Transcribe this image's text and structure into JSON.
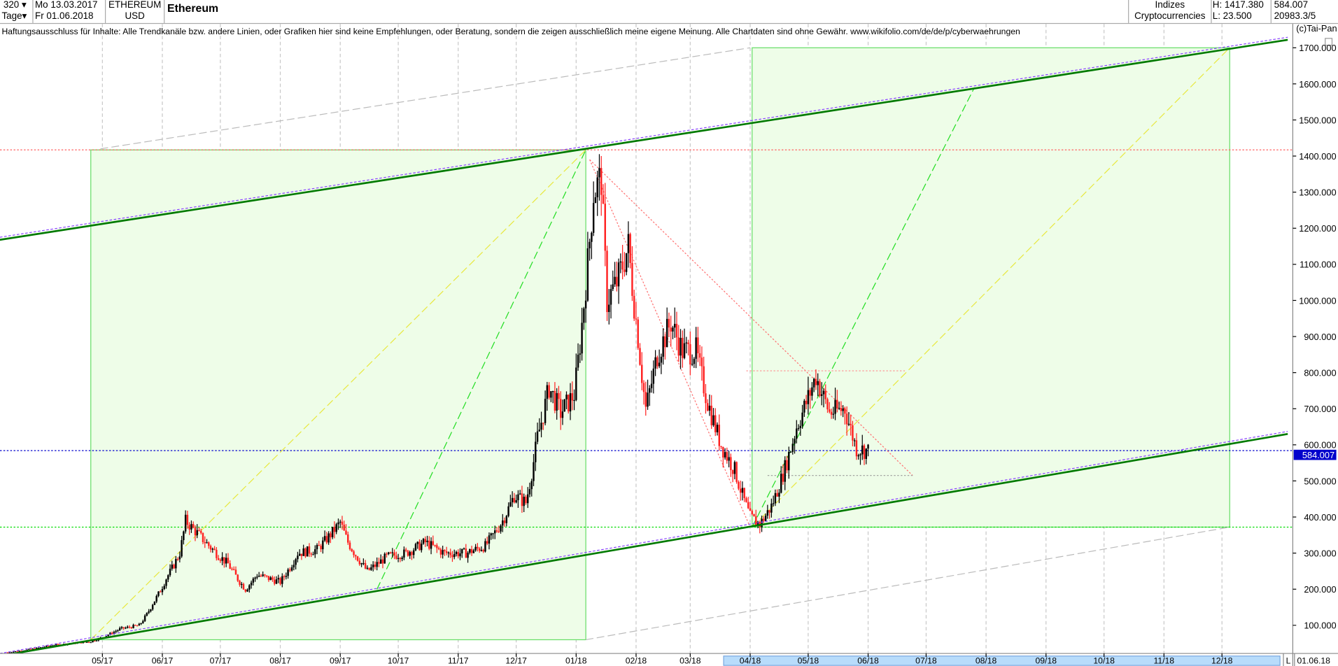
{
  "header": {
    "period_value": "320",
    "interval": "Tage",
    "start_date": "Mo 13.03.2017",
    "end_date": "Fr 01.06.2018",
    "symbol": "ETHEREUM",
    "currency": "USD",
    "name": "Ethereum",
    "group": "Indizes",
    "subgroup": "Cryptocurrencies",
    "high": "H: 1417.380",
    "low": "L: 23.500",
    "last": "584.007",
    "volume": "20983.3/5"
  },
  "disclaimer": "Haftungsausschluss für Inhalte: Alle Trendkanäle bzw. andere Linien, oder Grafiken hier sind keine Empfehlungen, oder Beratung, sondern die zeigen ausschließlich meine eigene Meinung. Alle Chartdaten sind ohne Gewähr.  www.wikifolio.com/de/de/p/cyberwaehrungen",
  "copyright": "(c)Tai-Pan",
  "footer": {
    "marker": "L",
    "date": "01.06.18"
  },
  "colors": {
    "up": "#000000",
    "down": "#ff2020",
    "channel": "#007a00",
    "box_fill": "#eefde8",
    "box_stroke": "#66dd66",
    "last_price_bg": "#0000cc",
    "highlight": "#b8dcfb"
  },
  "chart_data": {
    "type": "candlestick",
    "title": "Ethereum",
    "ylim": [
      0,
      1750
    ],
    "y_ticks": [
      "100.000",
      "200.000",
      "300.000",
      "400.000",
      "500.000",
      "600.000",
      "700.000",
      "800.000",
      "900.000",
      "1000.000",
      "1100.000",
      "1200.000",
      "1300.000",
      "1400.000",
      "1500.000",
      "1600.000",
      "1700.000"
    ],
    "x_ticks": [
      "05/17",
      "06/17",
      "07/17",
      "08/17",
      "09/17",
      "10/17",
      "11/17",
      "12/17",
      "01/18",
      "02/18",
      "03/18",
      "04/18",
      "05/18",
      "06/18",
      "07/18",
      "08/18",
      "09/18",
      "10/18",
      "11/18",
      "12/18"
    ],
    "grid": "vertical dashed",
    "last_price": "584.007",
    "close_approx": [
      [
        "2017-03-13",
        25
      ],
      [
        "2017-04-05",
        45
      ],
      [
        "2017-04-25",
        55
      ],
      [
        "2017-05-10",
        90
      ],
      [
        "2017-05-20",
        100
      ],
      [
        "2017-05-27",
        160
      ],
      [
        "2017-06-03",
        230
      ],
      [
        "2017-06-10",
        300
      ],
      [
        "2017-06-13",
        390
      ],
      [
        "2017-06-20",
        350
      ],
      [
        "2017-06-27",
        310
      ],
      [
        "2017-07-05",
        270
      ],
      [
        "2017-07-14",
        200
      ],
      [
        "2017-07-20",
        240
      ],
      [
        "2017-08-01",
        220
      ],
      [
        "2017-08-10",
        300
      ],
      [
        "2017-08-20",
        310
      ],
      [
        "2017-09-01",
        385
      ],
      [
        "2017-09-05",
        330
      ],
      [
        "2017-09-15",
        250
      ],
      [
        "2017-09-25",
        290
      ],
      [
        "2017-10-05",
        300
      ],
      [
        "2017-10-15",
        330
      ],
      [
        "2017-10-25",
        300
      ],
      [
        "2017-11-05",
        300
      ],
      [
        "2017-11-15",
        320
      ],
      [
        "2017-11-24",
        390
      ],
      [
        "2017-11-30",
        460
      ],
      [
        "2017-12-06",
        440
      ],
      [
        "2017-12-12",
        620
      ],
      [
        "2017-12-18",
        760
      ],
      [
        "2017-12-24",
        690
      ],
      [
        "2017-12-31",
        740
      ],
      [
        "2018-01-05",
        990
      ],
      [
        "2018-01-10",
        1300
      ],
      [
        "2018-01-14",
        1340
      ],
      [
        "2018-01-17",
        1000
      ],
      [
        "2018-01-22",
        1050
      ],
      [
        "2018-01-28",
        1150
      ],
      [
        "2018-02-02",
        900
      ],
      [
        "2018-02-06",
        700
      ],
      [
        "2018-02-12",
        850
      ],
      [
        "2018-02-19",
        940
      ],
      [
        "2018-02-25",
        860
      ],
      [
        "2018-03-04",
        860
      ],
      [
        "2018-03-10",
        720
      ],
      [
        "2018-03-17",
        600
      ],
      [
        "2018-03-24",
        530
      ],
      [
        "2018-04-01",
        400
      ],
      [
        "2018-04-06",
        380
      ],
      [
        "2018-04-12",
        430
      ],
      [
        "2018-04-18",
        520
      ],
      [
        "2018-04-25",
        650
      ],
      [
        "2018-05-05",
        790
      ],
      [
        "2018-05-12",
        690
      ],
      [
        "2018-05-20",
        700
      ],
      [
        "2018-05-26",
        590
      ],
      [
        "2018-06-01",
        584
      ]
    ],
    "annotations": [
      {
        "kind": "channel",
        "from": [
          "2017-03-09",
          1168
        ],
        "to": [
          "2019-01-04",
          1722
        ]
      },
      {
        "kind": "channel",
        "from": [
          "2017-03-09",
          15
        ],
        "to": [
          "2019-01-04",
          630
        ]
      },
      {
        "kind": "box",
        "from": [
          "2017-04-25",
          60
        ],
        "to": [
          "2018-01-06",
          1417
        ]
      },
      {
        "kind": "box",
        "from": [
          "2018-04-02",
          372
        ],
        "to": [
          "2018-12-05",
          1700
        ]
      },
      {
        "kind": "hline",
        "price": 1417,
        "color": "#ff6060"
      },
      {
        "kind": "hline",
        "price": 372,
        "color": "#00dd00"
      },
      {
        "kind": "hline",
        "price": 584.007,
        "color": "#0000cc"
      },
      {
        "kind": "dash",
        "color": "#22dd22",
        "from": [
          "2017-09-20",
          200
        ],
        "to": [
          "2018-01-06",
          1417
        ]
      },
      {
        "kind": "dash",
        "color": "#e8e840",
        "from": [
          "2017-04-25",
          60
        ],
        "to": [
          "2018-01-06",
          1417
        ]
      },
      {
        "kind": "dash",
        "color": "#22dd22",
        "from": [
          "2018-04-02",
          372
        ],
        "to": [
          "2018-07-26",
          1590
        ]
      },
      {
        "kind": "dash",
        "color": "#e8e840",
        "from": [
          "2018-04-02",
          372
        ],
        "to": [
          "2018-12-05",
          1700
        ]
      },
      {
        "kind": "dash",
        "color": "#bbbbbb",
        "from": [
          "2017-04-30",
          1420
        ],
        "to": [
          "2018-04-01",
          1700
        ]
      },
      {
        "kind": "dash",
        "color": "#bbbbbb",
        "from": [
          "2018-01-06",
          60
        ],
        "to": [
          "2018-12-05",
          372
        ]
      },
      {
        "kind": "dot",
        "color": "#ff7070",
        "from": [
          "2018-01-08",
          1390
        ],
        "to": [
          "2018-04-01",
          372
        ]
      },
      {
        "kind": "dot",
        "color": "#ff7070",
        "from": [
          "2018-01-08",
          1390
        ],
        "to": [
          "2018-06-24",
          515
        ]
      },
      {
        "kind": "dot",
        "color": "#ff9090",
        "from": [
          "2018-03-30",
          805
        ],
        "to": [
          "2018-06-20",
          805
        ]
      },
      {
        "kind": "dot",
        "color": "#999999",
        "from": [
          "2018-04-10",
          515
        ],
        "to": [
          "2018-06-24",
          515
        ]
      }
    ]
  }
}
